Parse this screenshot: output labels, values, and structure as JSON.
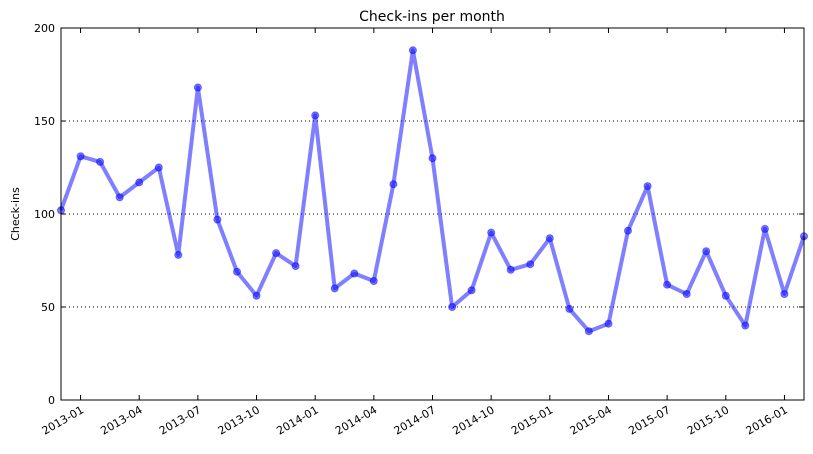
{
  "chart_data": {
    "type": "line",
    "title": "Check-ins per month",
    "xlabel": "",
    "ylabel": "Check-ins",
    "ylim": [
      0,
      200
    ],
    "y_ticks": [
      0,
      50,
      100,
      150,
      200
    ],
    "grid": "horizontal-dotted",
    "line_color": "#0000ff",
    "x_tick_labels": [
      "2013-01",
      "2013-04",
      "2013-07",
      "2013-10",
      "2014-01",
      "2014-04",
      "2014-07",
      "2014-10",
      "2015-01",
      "2015-04",
      "2015-07",
      "2015-10",
      "2016-01"
    ],
    "x": [
      "2012-12",
      "2013-01",
      "2013-02",
      "2013-03",
      "2013-04",
      "2013-05",
      "2013-06",
      "2013-07",
      "2013-08",
      "2013-09",
      "2013-10",
      "2013-11",
      "2013-12",
      "2014-01",
      "2014-02",
      "2014-03",
      "2014-04",
      "2014-05",
      "2014-06",
      "2014-07",
      "2014-08",
      "2014-09",
      "2014-10",
      "2014-11",
      "2014-12",
      "2015-01",
      "2015-02",
      "2015-03",
      "2015-04",
      "2015-05",
      "2015-06",
      "2015-07",
      "2015-08",
      "2015-09",
      "2015-10",
      "2015-11",
      "2015-12",
      "2016-01",
      "2016-02"
    ],
    "values": [
      102,
      131,
      128,
      109,
      117,
      125,
      78,
      168,
      97,
      69,
      56,
      79,
      72,
      153,
      60,
      68,
      64,
      116,
      188,
      130,
      50,
      59,
      90,
      70,
      73,
      87,
      49,
      37,
      41,
      91,
      115,
      62,
      57,
      80,
      56,
      40,
      92,
      57,
      88
    ]
  }
}
